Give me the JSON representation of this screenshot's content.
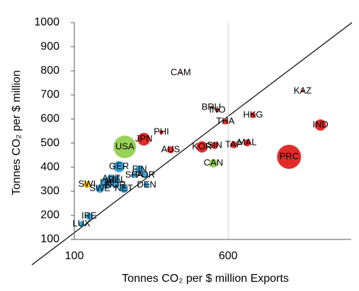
{
  "chart_data": {
    "type": "bubble",
    "x_label": "Tonnes CO₂ per $ million Exports",
    "y_label": "Tonnes CO₂ per $ million",
    "xlim": [
      100,
      1000
    ],
    "xticks": [
      100,
      600
    ],
    "ylim": [
      100,
      1000
    ],
    "yticks": [
      100,
      200,
      300,
      400,
      500,
      600,
      700,
      800,
      900,
      1000
    ],
    "grid_x": true,
    "labels": [
      "CAM",
      "KAZ",
      "BRU",
      "INO",
      "HKG",
      "THA",
      "IND",
      "PHI",
      "JPN",
      "USA",
      "AUS",
      "KOR",
      "SIN",
      "TAP",
      "MAL",
      "PRC",
      "CAN",
      "GER",
      "FIN",
      "SPA",
      "POR",
      "AUT",
      "BEL",
      "UK",
      "NOR",
      "DEN",
      "SWI",
      "SWE",
      "NET",
      "IRE",
      "LUX"
    ],
    "x": [
      446,
      842,
      545,
      565,
      681,
      591,
      900,
      383,
      326,
      264,
      413,
      515,
      556,
      618,
      662,
      798,
      552,
      245,
      312,
      294,
      330,
      220,
      238,
      204,
      234,
      335,
      141,
      183,
      261,
      148,
      123
    ],
    "y": [
      792,
      716,
      648,
      636,
      616,
      589,
      575,
      545,
      516,
      484,
      472,
      484,
      490,
      493,
      501,
      443,
      416,
      402,
      390,
      367,
      367,
      352,
      346,
      334,
      326,
      326,
      328,
      311,
      311,
      196,
      164
    ],
    "sizes": [
      2,
      4,
      3,
      9,
      16,
      16,
      64,
      9,
      81,
      256,
      25,
      64,
      25,
      25,
      25,
      289,
      36,
      64,
      36,
      16,
      16,
      36,
      25,
      64,
      25,
      16,
      25,
      36,
      36,
      25,
      16
    ],
    "colors": [
      "#e02020",
      "#e02020",
      "#e02020",
      "#e02020",
      "#e02020",
      "#e02020",
      "#e02020",
      "#e02020",
      "#e02020",
      "#92d050",
      "#e02020",
      "#e02020",
      "#e02020",
      "#e02020",
      "#e02020",
      "#e02020",
      "#92d050",
      "#2e9fd8",
      "#2e9fd8",
      "#2e9fd8",
      "#2e9fd8",
      "#2e9fd8",
      "#2e9fd8",
      "#2e9fd8",
      "#2e9fd8",
      "#2e9fd8",
      "#ffc000",
      "#2e9fd8",
      "#2e9fd8",
      "#2e9fd8",
      "#2e9fd8"
    ]
  }
}
